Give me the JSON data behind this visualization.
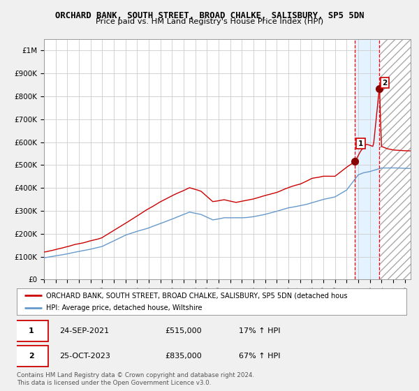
{
  "title": "ORCHARD BANK, SOUTH STREET, BROAD CHALKE, SALISBURY, SP5 5DN",
  "subtitle": "Price paid vs. HM Land Registry's House Price Index (HPI)",
  "ylabel_vals": [
    "£0",
    "£100K",
    "£200K",
    "£300K",
    "£400K",
    "£500K",
    "£600K",
    "£700K",
    "£800K",
    "£900K",
    "£1M"
  ],
  "yticks": [
    0,
    100000,
    200000,
    300000,
    400000,
    500000,
    600000,
    700000,
    800000,
    900000,
    1000000
  ],
  "ylim": [
    0,
    1050000
  ],
  "xlim_start": 1995.0,
  "xlim_end": 2026.5,
  "red_line_color": "#cc0000",
  "blue_line_color": "#6699cc",
  "sale1_x": 2021.73,
  "sale1_y": 515000,
  "sale2_x": 2023.81,
  "sale2_y": 835000,
  "sale1_label": "1",
  "sale2_label": "2",
  "highlight_start": 2021.73,
  "highlight_end": 2023.81,
  "dashed_line1_x": 2021.73,
  "dashed_line2_x": 2023.81,
  "legend_red_label": "ORCHARD BANK, SOUTH STREET, BROAD CHALKE, SALISBURY, SP5 5DN (detached hous",
  "legend_blue_label": "HPI: Average price, detached house, Wiltshire",
  "table_row1": [
    "1",
    "24-SEP-2021",
    "£515,000",
    "17% ↑ HPI"
  ],
  "table_row2": [
    "2",
    "25-OCT-2023",
    "£835,000",
    "67% ↑ HPI"
  ],
  "footer": "Contains HM Land Registry data © Crown copyright and database right 2024.\nThis data is licensed under the Open Government Licence v3.0.",
  "background_color": "#f0f0f0",
  "plot_bg_color": "#ffffff",
  "grid_color": "#cccccc"
}
